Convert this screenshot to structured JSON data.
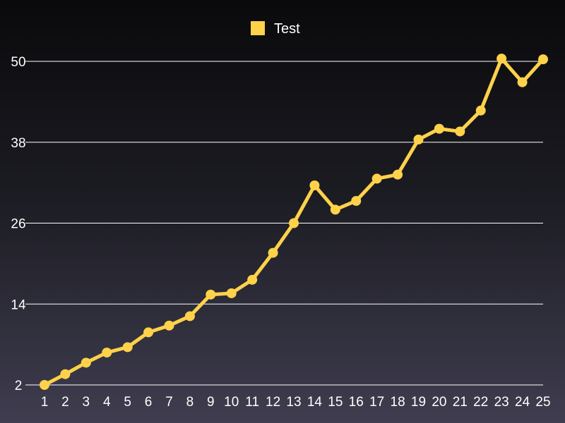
{
  "chart_data": {
    "type": "line",
    "title": "",
    "xlabel": "",
    "ylabel": "",
    "x": [
      1,
      2,
      3,
      4,
      5,
      6,
      7,
      8,
      9,
      10,
      11,
      12,
      13,
      14,
      15,
      16,
      17,
      18,
      19,
      20,
      21,
      22,
      23,
      24,
      25
    ],
    "series": [
      {
        "name": "Test",
        "color": "#ffd24a",
        "values": [
          2.0,
          3.6,
          5.3,
          6.8,
          7.6,
          9.8,
          10.8,
          12.2,
          15.4,
          15.6,
          17.6,
          21.6,
          26.0,
          31.6,
          28.0,
          29.3,
          32.6,
          33.2,
          38.4,
          40.0,
          39.6,
          42.7,
          50.4,
          46.9,
          50.3
        ]
      }
    ],
    "ylim": [
      2,
      50
    ],
    "yticks": [
      2,
      14,
      26,
      38,
      50
    ],
    "grid": true,
    "legend": "top-center"
  }
}
